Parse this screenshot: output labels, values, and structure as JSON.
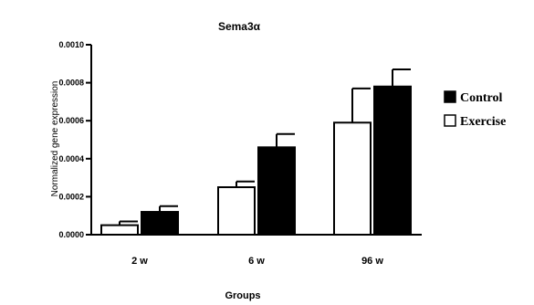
{
  "chart_data": {
    "type": "bar",
    "title": "Sema3α",
    "xlabel": "Groups",
    "ylabel": "Normalized gene expression",
    "categories": [
      "2 w",
      "6 w",
      "96 w"
    ],
    "ylim": [
      0,
      0.001
    ],
    "yticks": [
      "0.0000",
      "0.0002",
      "0.0004",
      "0.0006",
      "0.0008",
      "0.0010"
    ],
    "series": [
      {
        "name": "Exercise",
        "color": "#ffffff",
        "values": [
          5e-05,
          0.00025,
          0.00059
        ],
        "errors": [
          2e-05,
          3e-05,
          0.00018
        ]
      },
      {
        "name": "Control",
        "color": "#000000",
        "values": [
          0.00012,
          0.00046,
          0.00078
        ],
        "errors": [
          3e-05,
          7e-05,
          9e-05
        ]
      }
    ],
    "legend_order": [
      "Control",
      "Exercise"
    ],
    "legend_position": "right",
    "grid": false
  }
}
